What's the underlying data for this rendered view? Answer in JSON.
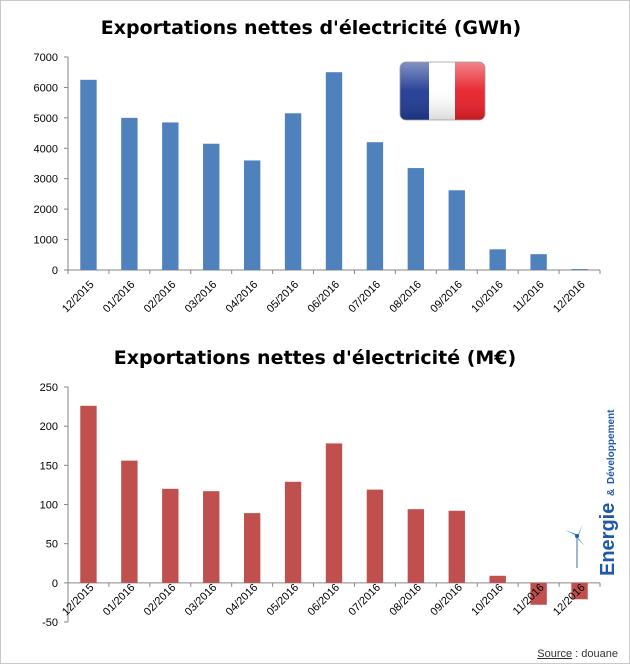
{
  "chart_data": [
    {
      "type": "bar",
      "title": "Exportations nettes d'électricité (GWh)",
      "categories": [
        "12/2015",
        "01/2016",
        "02/2016",
        "03/2016",
        "04/2016",
        "05/2016",
        "06/2016",
        "07/2016",
        "08/2016",
        "09/2016",
        "10/2016",
        "11/2016",
        "12/2016"
      ],
      "values": [
        6250,
        5000,
        4850,
        4150,
        3600,
        5150,
        6500,
        4200,
        3350,
        2620,
        680,
        520,
        30
      ],
      "ylim": [
        0,
        7000
      ],
      "yticks": [
        0,
        1000,
        2000,
        3000,
        4000,
        5000,
        6000,
        7000
      ],
      "color": "#4f81bd",
      "xlabel": "",
      "ylabel": ""
    },
    {
      "type": "bar",
      "title": "Exportations nettes d'électricité (M€)",
      "categories": [
        "12/2015",
        "01/2016",
        "02/2016",
        "03/2016",
        "04/2016",
        "05/2016",
        "06/2016",
        "07/2016",
        "08/2016",
        "09/2016",
        "10/2016",
        "11/2016",
        "12/2016"
      ],
      "values": [
        226,
        156,
        120,
        117,
        89,
        129,
        178,
        119,
        94,
        92,
        9,
        -28,
        -21
      ],
      "ylim": [
        -50,
        250
      ],
      "yticks": [
        -50,
        0,
        50,
        100,
        150,
        200,
        250
      ],
      "color": "#c0504d",
      "xlabel": "",
      "ylabel": ""
    }
  ],
  "flag": {
    "colors": [
      "#1f3a93",
      "#ffffff",
      "#e8202a"
    ]
  },
  "source": {
    "label": "Source",
    "separator": " : ",
    "value": "douane"
  },
  "brand": {
    "name": "Energie",
    "connector": "&",
    "sub": "Développement",
    "color": "#1f5aa8",
    "accent": "#7fb3e0"
  }
}
